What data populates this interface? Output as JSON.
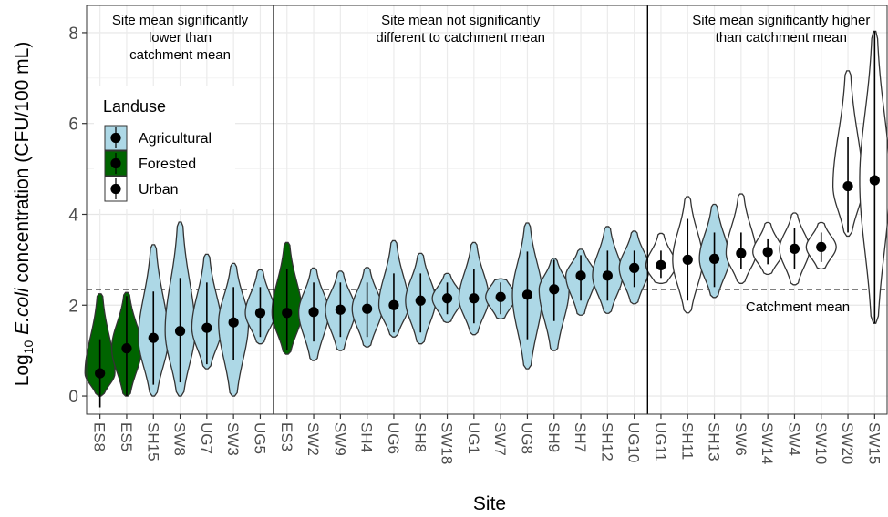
{
  "chart_data": {
    "type": "violin",
    "xlabel": "Site",
    "ylabel_prefix": "Log",
    "ylabel_sub": "10",
    "ylabel_italic": "E.coli",
    "ylabel_suffix": " concentration (CFU/100 mL)",
    "ylim": [
      -0.4,
      8.6
    ],
    "yticks": [
      0,
      2,
      4,
      6,
      8
    ],
    "grid": true,
    "reference_line": {
      "value": 2.35,
      "label": "Catchment mean",
      "style": "dashed"
    },
    "legend": {
      "title": "Landuse",
      "placement": "top-left",
      "entries": [
        {
          "name": "Agricultural",
          "color": "#add8e6"
        },
        {
          "name": "Forested",
          "color": "#006400"
        },
        {
          "name": "Urban",
          "color": "#ffffff"
        }
      ]
    },
    "groups": [
      {
        "label": "Site mean significantly lower than catchment mean",
        "lines": [
          "Site mean significantly",
          "lower than",
          "catchment mean"
        ],
        "start": 0,
        "end": 6
      },
      {
        "label": "Site mean not significantly different to catchment mean",
        "lines": [
          "Site mean not significantly",
          "different to catchment mean"
        ],
        "start": 7,
        "end": 20
      },
      {
        "label": "Site mean significantly higher than catchment mean",
        "lines": [
          "Site mean significantly higher",
          "than catchment mean"
        ],
        "start": 21,
        "end": 30
      }
    ],
    "sites": [
      {
        "name": "ES8",
        "landuse": "Forested",
        "mean": 0.5,
        "min": 0.0,
        "max": 2.25,
        "whisker": [
          -0.25,
          1.25
        ]
      },
      {
        "name": "ES5",
        "landuse": "Forested",
        "mean": 1.05,
        "min": 0.0,
        "max": 2.28,
        "whisker": [
          0.0,
          2.2
        ]
      },
      {
        "name": "SH15",
        "landuse": "Agricultural",
        "mean": 1.28,
        "min": 0.0,
        "max": 3.33,
        "whisker": [
          0.25,
          2.3
        ]
      },
      {
        "name": "SW8",
        "landuse": "Agricultural",
        "mean": 1.43,
        "min": 0.0,
        "max": 3.83,
        "whisker": [
          0.3,
          2.6
        ]
      },
      {
        "name": "UG7",
        "landuse": "Agricultural",
        "mean": 1.5,
        "min": 0.6,
        "max": 3.12,
        "whisker": [
          0.7,
          2.5
        ]
      },
      {
        "name": "SW3",
        "landuse": "Agricultural",
        "mean": 1.62,
        "min": 0.0,
        "max": 2.92,
        "whisker": [
          0.8,
          2.4
        ]
      },
      {
        "name": "UG5",
        "landuse": "Agricultural",
        "mean": 1.83,
        "min": 1.15,
        "max": 2.78,
        "whisker": [
          1.3,
          2.4
        ]
      },
      {
        "name": "ES3",
        "landuse": "Forested",
        "mean": 1.83,
        "min": 0.92,
        "max": 3.38,
        "whisker": [
          1.0,
          2.8
        ]
      },
      {
        "name": "SW2",
        "landuse": "Agricultural",
        "mean": 1.85,
        "min": 0.78,
        "max": 2.82,
        "whisker": [
          1.2,
          2.5
        ]
      },
      {
        "name": "SW9",
        "landuse": "Agricultural",
        "mean": 1.9,
        "min": 1.0,
        "max": 2.75,
        "whisker": [
          1.3,
          2.5
        ]
      },
      {
        "name": "SH4",
        "landuse": "Agricultural",
        "mean": 1.92,
        "min": 1.08,
        "max": 2.83,
        "whisker": [
          1.3,
          2.5
        ]
      },
      {
        "name": "UG6",
        "landuse": "Agricultural",
        "mean": 2.0,
        "min": 1.3,
        "max": 3.42,
        "whisker": [
          1.4,
          2.7
        ]
      },
      {
        "name": "SH8",
        "landuse": "Agricultural",
        "mean": 2.1,
        "min": 1.15,
        "max": 3.14,
        "whisker": [
          1.4,
          2.7
        ]
      },
      {
        "name": "SW18",
        "landuse": "Agricultural",
        "mean": 2.15,
        "min": 1.62,
        "max": 2.7,
        "whisker": [
          1.8,
          2.5
        ]
      },
      {
        "name": "UG1",
        "landuse": "Agricultural",
        "mean": 2.15,
        "min": 1.35,
        "max": 3.38,
        "whisker": [
          1.6,
          2.8
        ]
      },
      {
        "name": "SW7",
        "landuse": "Agricultural",
        "mean": 2.18,
        "min": 1.7,
        "max": 2.58,
        "whisker": [
          1.8,
          2.5
        ]
      },
      {
        "name": "UG8",
        "landuse": "Agricultural",
        "mean": 2.23,
        "min": 0.6,
        "max": 3.81,
        "whisker": [
          1.25,
          3.18
        ]
      },
      {
        "name": "SH9",
        "landuse": "Agricultural",
        "mean": 2.35,
        "min": 1.0,
        "max": 3.03,
        "whisker": [
          1.65,
          3.0
        ]
      },
      {
        "name": "SH7",
        "landuse": "Agricultural",
        "mean": 2.65,
        "min": 1.78,
        "max": 3.23,
        "whisker": [
          2.1,
          3.1
        ]
      },
      {
        "name": "SH12",
        "landuse": "Agricultural",
        "mean": 2.65,
        "min": 1.82,
        "max": 3.73,
        "whisker": [
          2.1,
          3.2
        ]
      },
      {
        "name": "UG10",
        "landuse": "Agricultural",
        "mean": 2.82,
        "min": 2.03,
        "max": 3.63,
        "whisker": [
          2.4,
          3.2
        ]
      },
      {
        "name": "UG11",
        "landuse": "Urban",
        "mean": 2.88,
        "min": 2.48,
        "max": 3.58,
        "whisker": [
          2.6,
          3.2
        ]
      },
      {
        "name": "SH11",
        "landuse": "Urban",
        "mean": 3.0,
        "min": 1.83,
        "max": 4.39,
        "whisker": [
          2.1,
          3.9
        ]
      },
      {
        "name": "SH13",
        "landuse": "Agricultural",
        "mean": 3.02,
        "min": 2.17,
        "max": 4.22,
        "whisker": [
          2.4,
          3.6
        ]
      },
      {
        "name": "SW6",
        "landuse": "Urban",
        "mean": 3.14,
        "min": 2.48,
        "max": 4.45,
        "whisker": [
          2.8,
          3.6
        ]
      },
      {
        "name": "SW14",
        "landuse": "Urban",
        "mean": 3.17,
        "min": 2.68,
        "max": 3.82,
        "whisker": [
          2.9,
          3.45
        ]
      },
      {
        "name": "SW4",
        "landuse": "Urban",
        "mean": 3.24,
        "min": 2.45,
        "max": 4.03,
        "whisker": [
          2.8,
          3.7
        ]
      },
      {
        "name": "SW10",
        "landuse": "Urban",
        "mean": 3.28,
        "min": 2.8,
        "max": 3.82,
        "whisker": [
          2.95,
          3.6
        ]
      },
      {
        "name": "SW20",
        "landuse": "Urban",
        "mean": 4.62,
        "min": 3.52,
        "max": 7.16,
        "whisker": [
          3.6,
          5.7
        ]
      },
      {
        "name": "SW15",
        "landuse": "Urban",
        "mean": 4.75,
        "min": 1.6,
        "max": 8.03,
        "whisker": [
          1.6,
          8.03
        ]
      }
    ]
  }
}
